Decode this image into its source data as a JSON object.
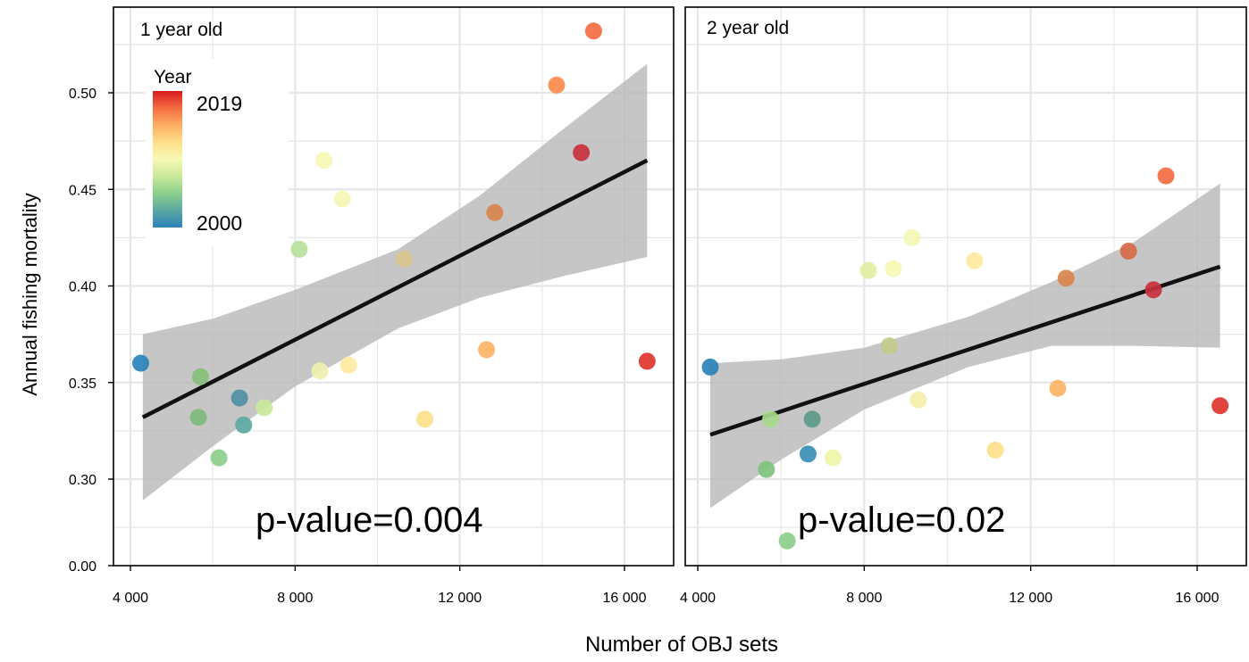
{
  "figure": {
    "ylabel": "Annual fishing mortality",
    "xlabel": "Number of OBJ sets"
  },
  "legend": {
    "title": "Year",
    "max_label": "2019",
    "min_label": "2000",
    "colors": [
      "#2b83ba",
      "#5aa8a0",
      "#8ccf8c",
      "#c9e89a",
      "#f6f9b4",
      "#fee08b",
      "#fdae61",
      "#f46d43",
      "#d7191c"
    ]
  },
  "colors": {
    "ribbon": "#b8b8b8",
    "line": "#111111",
    "grid": "#e6e6e6",
    "frame": "#000000"
  },
  "chart_data": [
    {
      "type": "scatter",
      "title": "1 year old",
      "annotation": "p-value=0.004",
      "x_ticks": [
        "4 000",
        "8 000",
        "12 000",
        "16 000"
      ],
      "x_tick_values": [
        4000,
        8000,
        12000,
        16000
      ],
      "y_ticks": [
        "0.00",
        "0.30",
        "0.35",
        "0.40",
        "0.45",
        "0.50"
      ],
      "y_tick_values": [
        0.0,
        0.3,
        0.35,
        0.4,
        0.45,
        0.5
      ],
      "xlim": [
        3550,
        16750
      ],
      "ylim": [
        0.255,
        0.545
      ],
      "y_break": "0.00 shown at bottom of truncated axis",
      "grid": true,
      "points": [
        {
          "x": 4250,
          "y": 0.36,
          "color": "#2b83ba"
        },
        {
          "x": 5650,
          "y": 0.332,
          "color": "#7fb87a"
        },
        {
          "x": 5700,
          "y": 0.353,
          "color": "#86c07a"
        },
        {
          "x": 6150,
          "y": 0.311,
          "color": "#8ccf8c"
        },
        {
          "x": 6650,
          "y": 0.342,
          "color": "#4f8fa5"
        },
        {
          "x": 6750,
          "y": 0.328,
          "color": "#5aa8a0"
        },
        {
          "x": 7250,
          "y": 0.337,
          "color": "#c9e89a"
        },
        {
          "x": 8100,
          "y": 0.419,
          "color": "#b8e09a"
        },
        {
          "x": 8600,
          "y": 0.356,
          "color": "#f0f0b0"
        },
        {
          "x": 8700,
          "y": 0.465,
          "color": "#f6f9b4"
        },
        {
          "x": 9150,
          "y": 0.445,
          "color": "#f4f7b4"
        },
        {
          "x": 9300,
          "y": 0.359,
          "color": "#fde9a0"
        },
        {
          "x": 10650,
          "y": 0.414,
          "color": "#d9c48c"
        },
        {
          "x": 11150,
          "y": 0.331,
          "color": "#fee08b"
        },
        {
          "x": 12650,
          "y": 0.367,
          "color": "#fdb466"
        },
        {
          "x": 12850,
          "y": 0.438,
          "color": "#d9844c"
        },
        {
          "x": 14350,
          "y": 0.504,
          "color": "#f88a4c"
        },
        {
          "x": 14950,
          "y": 0.469,
          "color": "#c8303c"
        },
        {
          "x": 15250,
          "y": 0.532,
          "color": "#f46d43"
        },
        {
          "x": 16550,
          "y": 0.361,
          "color": "#e0342e"
        }
      ],
      "fit_line": {
        "x": [
          4300,
          16550
        ],
        "y": [
          0.332,
          0.465
        ]
      },
      "ci_band": {
        "x": [
          4300,
          6000,
          8000,
          10500,
          12500,
          14500,
          16550
        ],
        "lower": [
          0.289,
          0.317,
          0.348,
          0.378,
          0.394,
          0.405,
          0.415
        ],
        "upper": [
          0.375,
          0.383,
          0.398,
          0.419,
          0.447,
          0.481,
          0.515
        ]
      }
    },
    {
      "type": "scatter",
      "title": "2 year old",
      "annotation": "p-value=0.02",
      "x_ticks": [
        "4 000",
        "8 000",
        "12 000",
        "16 000"
      ],
      "x_tick_values": [
        4000,
        8000,
        12000,
        16000
      ],
      "xlim": [
        3600,
        16800
      ],
      "ylim": [
        0.255,
        0.545
      ],
      "grid": true,
      "points": [
        {
          "x": 4300,
          "y": 0.358,
          "color": "#2b83ba"
        },
        {
          "x": 5650,
          "y": 0.305,
          "color": "#7fc27d"
        },
        {
          "x": 5750,
          "y": 0.331,
          "color": "#a6d88a"
        },
        {
          "x": 6150,
          "y": 0.268,
          "color": "#8ccf8c"
        },
        {
          "x": 6650,
          "y": 0.313,
          "color": "#3a8fb5"
        },
        {
          "x": 6750,
          "y": 0.331,
          "color": "#5a9a8a"
        },
        {
          "x": 7250,
          "y": 0.311,
          "color": "#eef6a8"
        },
        {
          "x": 8100,
          "y": 0.408,
          "color": "#dff0a0"
        },
        {
          "x": 8600,
          "y": 0.369,
          "color": "#c2c98c"
        },
        {
          "x": 8700,
          "y": 0.409,
          "color": "#f6f9b4"
        },
        {
          "x": 9150,
          "y": 0.425,
          "color": "#f4f7b4"
        },
        {
          "x": 9300,
          "y": 0.341,
          "color": "#f6eea8"
        },
        {
          "x": 10650,
          "y": 0.413,
          "color": "#fde9a0"
        },
        {
          "x": 11150,
          "y": 0.315,
          "color": "#fee08b"
        },
        {
          "x": 12650,
          "y": 0.347,
          "color": "#fdb466"
        },
        {
          "x": 12850,
          "y": 0.404,
          "color": "#d9844c"
        },
        {
          "x": 14350,
          "y": 0.418,
          "color": "#d76a4a"
        },
        {
          "x": 14950,
          "y": 0.398,
          "color": "#c8303c"
        },
        {
          "x": 15250,
          "y": 0.457,
          "color": "#f46d43"
        },
        {
          "x": 16550,
          "y": 0.338,
          "color": "#e0342e"
        }
      ],
      "fit_line": {
        "x": [
          4300,
          16550
        ],
        "y": [
          0.323,
          0.41
        ]
      },
      "ci_band": {
        "x": [
          4300,
          6000,
          8000,
          10500,
          12500,
          14500,
          16550
        ],
        "lower": [
          0.285,
          0.31,
          0.336,
          0.358,
          0.369,
          0.369,
          0.368
        ],
        "upper": [
          0.36,
          0.362,
          0.368,
          0.384,
          0.402,
          0.423,
          0.453
        ]
      }
    }
  ]
}
